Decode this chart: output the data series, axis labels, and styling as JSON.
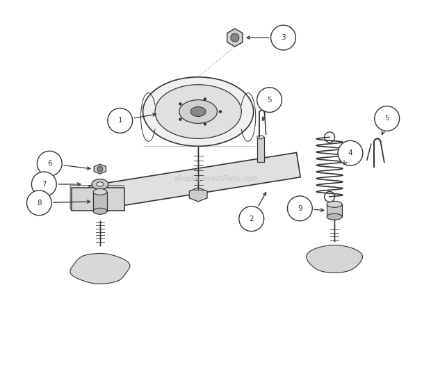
{
  "title": "",
  "watermark": "eReplacementParts.com",
  "background_color": "#ffffff",
  "line_color": "#333333",
  "figsize": [
    6.2,
    5.25
  ],
  "dpi": 100
}
